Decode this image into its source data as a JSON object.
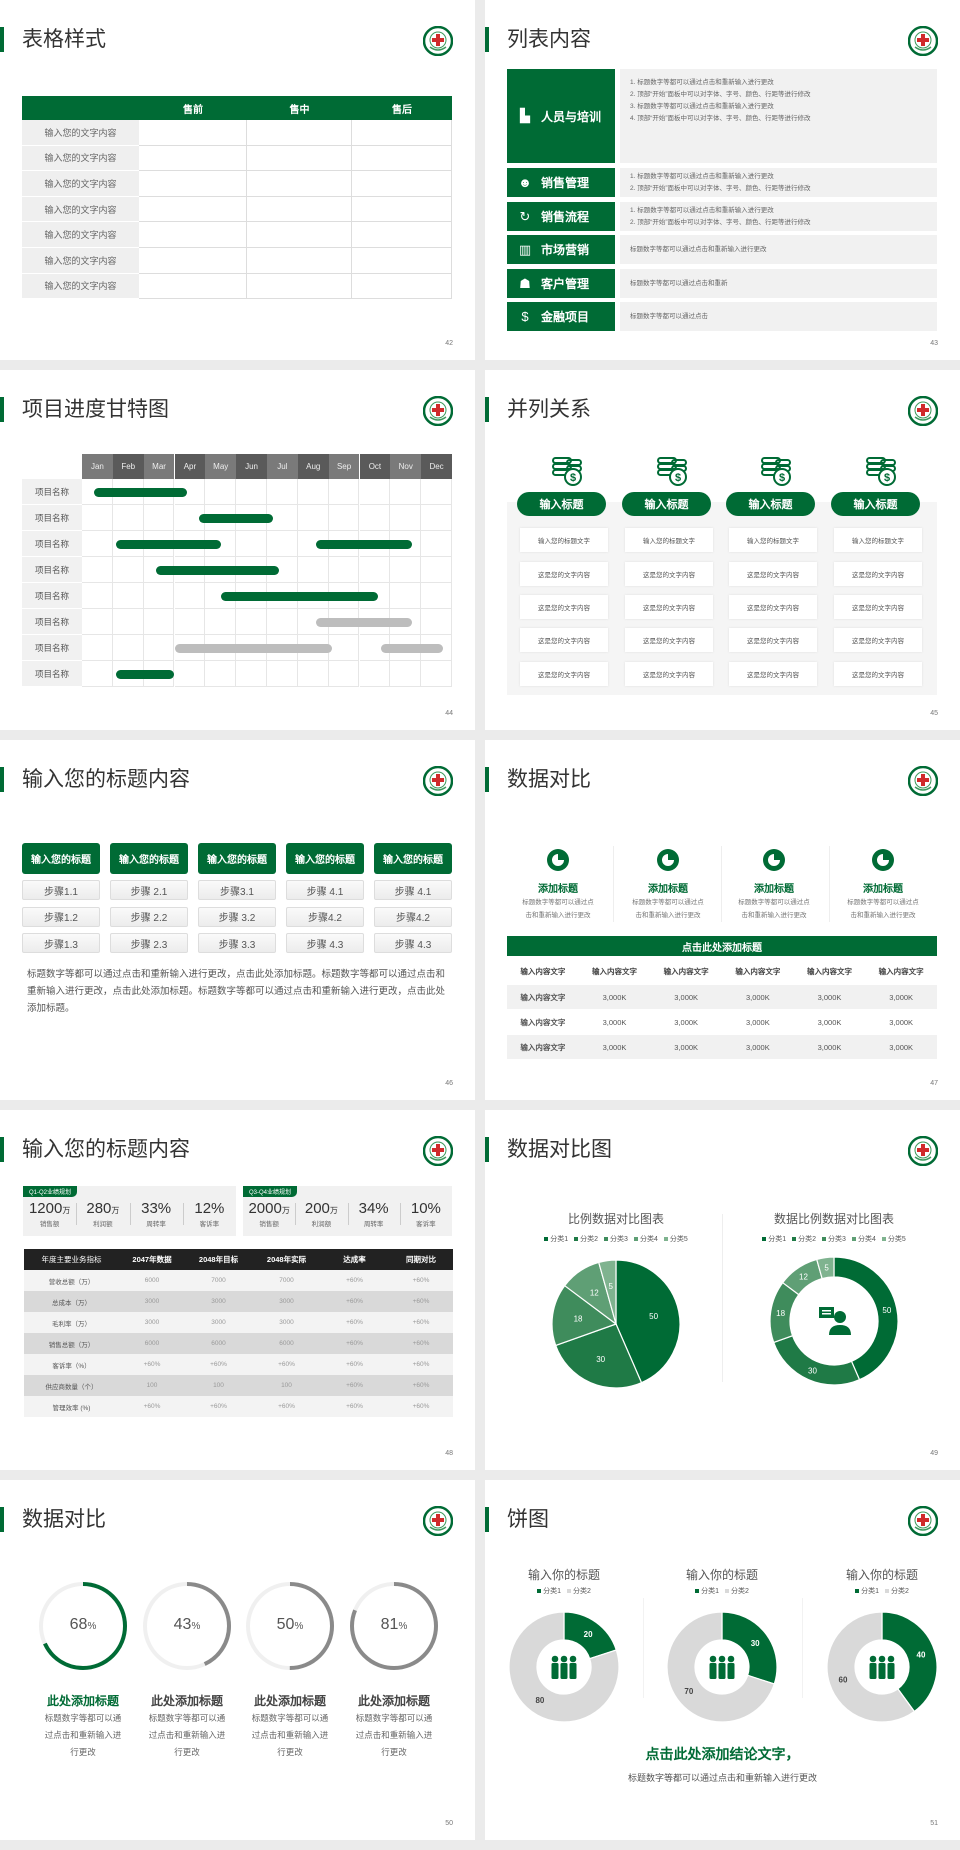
{
  "colors": {
    "accent": "#006b35",
    "gray": "#8a8a8a",
    "light": "#f1f1f1"
  },
  "logo_icon": "hospital-red-cross-emblem",
  "slides": [
    {
      "title": "表格样式",
      "page": "42",
      "table": {
        "headers": [
          "",
          "售前",
          "售中",
          "售后"
        ],
        "rows": [
          "输入您的文字内容",
          "输入您的文字内容",
          "输入您的文字内容",
          "输入您的文字内容",
          "输入您的文字内容",
          "输入您的文字内容",
          "输入您的文字内容"
        ]
      }
    },
    {
      "title": "列表内容",
      "page": "43",
      "items": [
        {
          "label": "人员与培训",
          "icon": "training-icon",
          "lines": [
            "1.  标题数字等都可以通过点击和重新输入进行更改",
            "2.  顶部“开始”面板中可以对字体、字号、颜色、行距等进行修改",
            "3.  标题数字等都可以通过点击和重新输入进行更改",
            "4.  顶部“开始”面板中可以对字体、字号、颜色、行距等进行修改"
          ]
        },
        {
          "label": "销售管理",
          "icon": "user-gear-icon",
          "lines": [
            "1.  标题数字等都可以通过点击和重新输入进行更改",
            "2.  顶部“开始”面板中可以对字体、字号、颜色、行距等进行修改"
          ]
        },
        {
          "label": "销售流程",
          "icon": "cycle-icon",
          "lines": [
            "1.  标题数字等都可以通过点击和重新输入进行更改",
            "2.  顶部“开始”面板中可以对字体、字号、颜色、行距等进行修改"
          ]
        },
        {
          "label": "市场营销",
          "icon": "bar-chart-icon",
          "lines": [
            "标题数字等都可以通过点击和重新输入进行更改"
          ]
        },
        {
          "label": "客户管理",
          "icon": "users-icon",
          "lines": [
            "标题数字等都可以通过点击和重新"
          ]
        },
        {
          "label": "金融项目",
          "icon": "money-hand-icon",
          "lines": [
            "标题数字等都可以通过点击"
          ]
        }
      ]
    },
    {
      "title": "项目进度甘特图",
      "page": "44"
    },
    {
      "title": "并列关系",
      "page": "45",
      "columns": [
        {
          "heading": "输入标题",
          "cells": [
            "输入您的标题文字",
            "这是您的文字内容",
            "这是您的文字内容",
            "这是您的文字内容",
            "这是您的文字内容"
          ]
        },
        {
          "heading": "输入标题",
          "cells": [
            "输入您的标题文字",
            "这是您的文字内容",
            "这是您的文字内容",
            "这是您的文字内容",
            "这是您的文字内容"
          ]
        },
        {
          "heading": "输入标题",
          "cells": [
            "输入您的标题文字",
            "这是您的文字内容",
            "这是您的文字内容",
            "这是您的文字内容",
            "这是您的文字内容"
          ]
        },
        {
          "heading": "输入标题",
          "cells": [
            "输入您的标题文字",
            "这是您的文字内容",
            "这是您的文字内容",
            "这是您的文字内容",
            "这是您的文字内容"
          ]
        }
      ]
    },
    {
      "title": "输入您的标题内容",
      "page": "46",
      "columns": [
        {
          "heading": "输入您的标题",
          "steps": [
            "步骤1.1",
            "步骤1.2",
            "步骤1.3"
          ]
        },
        {
          "heading": "输入您的标题",
          "steps": [
            "步骤 2.1",
            "步骤 2.2",
            "步骤 2.3"
          ]
        },
        {
          "heading": "输入您的标题",
          "steps": [
            "步骤3.1",
            "步骤 3.2",
            "步骤 3.3"
          ]
        },
        {
          "heading": "输入您的标题",
          "steps": [
            "步骤 4.1",
            "步骤4.2",
            "步骤 4.3"
          ]
        },
        {
          "heading": "输入您的标题",
          "steps": [
            "步骤 4.1",
            "步骤4.2",
            "步骤 4.3"
          ]
        }
      ],
      "paragraph": "标题数字等都可以通过点击和重新输入进行更改，点击此处添加标题。标题数字等都可以通过点击和重新输入进行更改，点击此处添加标题。标题数字等都可以通过点击和重新输入进行更改，点击此处添加标题。"
    },
    {
      "title": "数据对比",
      "page": "47",
      "features": [
        {
          "title": "添加标题",
          "desc1": "标题数字等都可以通过点",
          "desc2": "击和重新输入进行更改"
        },
        {
          "title": "添加标题",
          "desc1": "标题数字等都可以通过点",
          "desc2": "击和重新输入进行更改"
        },
        {
          "title": "添加标题",
          "desc1": "标题数字等都可以通过点",
          "desc2": "击和重新输入进行更改"
        },
        {
          "title": "添加标题",
          "desc1": "标题数字等都可以通过点",
          "desc2": "击和重新输入进行更改"
        }
      ],
      "table_title": "点击此处添加标题",
      "headers": [
        "输入内容文字",
        "输入内容文字",
        "输入内容文字",
        "输入内容文字",
        "输入内容文字",
        "输入内容文字"
      ],
      "rows": [
        [
          "输入内容文字",
          "3,000K",
          "3,000K",
          "3,000K",
          "3,000K",
          "3,000K"
        ],
        [
          "输入内容文字",
          "3,000K",
          "3,000K",
          "3,000K",
          "3,000K",
          "3,000K"
        ],
        [
          "输入内容文字",
          "3,000K",
          "3,000K",
          "3,000K",
          "3,000K",
          "3,000K"
        ]
      ]
    },
    {
      "title": "输入您的标题内容",
      "page": "48",
      "kpis": [
        {
          "tag": "Q1-Q2业绩规划",
          "items": [
            {
              "value": "1200",
              "unit": "万",
              "label": "销售额"
            },
            {
              "value": "280",
              "unit": "万",
              "label": "利润额"
            },
            {
              "value": "33%",
              "unit": "",
              "label": "周转率"
            },
            {
              "value": "12%",
              "unit": "",
              "label": "客诉率"
            }
          ]
        },
        {
          "tag": "Q3-Q4业绩规划",
          "items": [
            {
              "value": "2000",
              "unit": "万",
              "label": "销售额"
            },
            {
              "value": "200",
              "unit": "万",
              "label": "利润额"
            },
            {
              "value": "34%",
              "unit": "",
              "label": "周转率"
            },
            {
              "value": "10%",
              "unit": "",
              "label": "客诉率"
            }
          ]
        }
      ],
      "headers": [
        "年度主要业务指标",
        "2047年数据",
        "2048年目标",
        "2048年实际",
        "达成率",
        "同期对比"
      ],
      "rows": [
        [
          "营收总额（万）",
          "6000",
          "7000",
          "7000",
          "+60%",
          "+60%"
        ],
        [
          "总成本（万）",
          "3000",
          "3000",
          "3000",
          "+60%",
          "+60%"
        ],
        [
          "毛利率（万）",
          "3000",
          "3000",
          "3000",
          "+60%",
          "+60%"
        ],
        [
          "销售总额（万）",
          "6000",
          "6000",
          "6000",
          "+60%",
          "+60%"
        ],
        [
          "客诉率（%）",
          "+60%",
          "+60%",
          "+60%",
          "+60%",
          "+60%"
        ],
        [
          "供应商数量（个）",
          "100",
          "100",
          "100",
          "+60%",
          "+60%"
        ],
        [
          "管理效率 (%)",
          "+60%",
          "+60%",
          "+60%",
          "+60%",
          "+60%"
        ]
      ]
    },
    {
      "title": "数据对比图",
      "page": "49"
    },
    {
      "title": "数据对比",
      "page": "50",
      "rings": [
        {
          "percent": 68,
          "pct_label": "68",
          "unit": "%",
          "title": "此处添加标题",
          "desc": [
            "标题数字等都可以通",
            "过点击和重新输入进",
            "行更改"
          ],
          "color": "#006b35"
        },
        {
          "percent": 43,
          "pct_label": "43",
          "unit": "%",
          "title": "此处添加标题",
          "desc": [
            "标题数字等都可以通",
            "过点击和重新输入进",
            "行更改"
          ],
          "color": "#8a8a8a"
        },
        {
          "percent": 50,
          "pct_label": "50",
          "unit": "%",
          "title": "此处添加标题",
          "desc": [
            "标题数字等都可以通",
            "过点击和重新输入进",
            "行更改"
          ],
          "color": "#8a8a8a"
        },
        {
          "percent": 81,
          "pct_label": "81",
          "unit": "%",
          "title": "此处添加标题",
          "desc": [
            "标题数字等都可以通",
            "过点击和重新输入进",
            "行更改"
          ],
          "color": "#8a8a8a"
        }
      ]
    },
    {
      "title": "饼图",
      "page": "51",
      "conclusion": "点击此处添加结论文字，",
      "conclusion_desc": "标题数字等都可以通过点击和重新输入进行更改"
    }
  ],
  "chart_data": [
    {
      "type": "gantt",
      "categories": [
        "Jan",
        "Feb",
        "Mar",
        "Apr",
        "May",
        "Jun",
        "Jul",
        "Aug",
        "Sep",
        "Oct",
        "Nov",
        "Dec"
      ],
      "rows": [
        {
          "label": "项目名称",
          "bars": [
            {
              "start": 0.4,
              "end": 3.4,
              "status": "active"
            }
          ]
        },
        {
          "label": "项目名称",
          "bars": [
            {
              "start": 3.8,
              "end": 6.2,
              "status": "active"
            }
          ]
        },
        {
          "label": "项目名称",
          "bars": [
            {
              "start": 1.1,
              "end": 4.5,
              "status": "active"
            },
            {
              "start": 7.6,
              "end": 10.7,
              "status": "active"
            }
          ]
        },
        {
          "label": "项目名称",
          "bars": [
            {
              "start": 2.4,
              "end": 6.4,
              "status": "active"
            }
          ]
        },
        {
          "label": "项目名称",
          "bars": [
            {
              "start": 4.5,
              "end": 9.6,
              "status": "active"
            }
          ]
        },
        {
          "label": "项目名称",
          "bars": [
            {
              "start": 7.6,
              "end": 10.7,
              "status": "planned"
            }
          ]
        },
        {
          "label": "项目名称",
          "bars": [
            {
              "start": 3.0,
              "end": 8.1,
              "status": "planned"
            },
            {
              "start": 9.7,
              "end": 11.7,
              "status": "planned"
            }
          ]
        },
        {
          "label": "项目名称",
          "bars": [
            {
              "start": 1.1,
              "end": 3.0,
              "status": "active"
            }
          ]
        }
      ]
    },
    {
      "type": "pie",
      "title": "比例数据对比图表",
      "categories": [
        "分类1",
        "分类2",
        "分类3",
        "分类4",
        "分类5"
      ],
      "values": [
        50,
        30,
        18,
        12,
        5
      ],
      "colors": [
        "#006b35",
        "#1f7a46",
        "#3f8c5c",
        "#5f9f75",
        "#7fb38f"
      ],
      "legend": "top"
    },
    {
      "type": "donut",
      "title": "数据比例数据对比图表",
      "categories": [
        "分类1",
        "分类2",
        "分类3",
        "分类4",
        "分类5"
      ],
      "values": [
        50,
        30,
        18,
        12,
        5
      ],
      "colors": [
        "#006b35",
        "#1f7a46",
        "#3f8c5c",
        "#5f9f75",
        "#7fb38f"
      ],
      "legend": "top",
      "center_icon": "customer-service-icon"
    },
    {
      "type": "donut",
      "title": "输入你的标题",
      "categories": [
        "分类1",
        "分类2"
      ],
      "values": [
        20,
        80
      ],
      "colors": [
        "#006b35",
        "#d9d9d9"
      ],
      "legend": "top",
      "center_icon": "team-icon"
    },
    {
      "type": "donut",
      "title": "输入你的标题",
      "categories": [
        "分类1",
        "分类2"
      ],
      "values": [
        30,
        70
      ],
      "colors": [
        "#006b35",
        "#d9d9d9"
      ],
      "legend": "top",
      "center_icon": "team-icon"
    },
    {
      "type": "donut",
      "title": "输入你的标题",
      "categories": [
        "分类1",
        "分类2"
      ],
      "values": [
        40,
        60
      ],
      "colors": [
        "#006b35",
        "#d9d9d9"
      ],
      "legend": "top",
      "center_icon": "team-icon"
    }
  ]
}
